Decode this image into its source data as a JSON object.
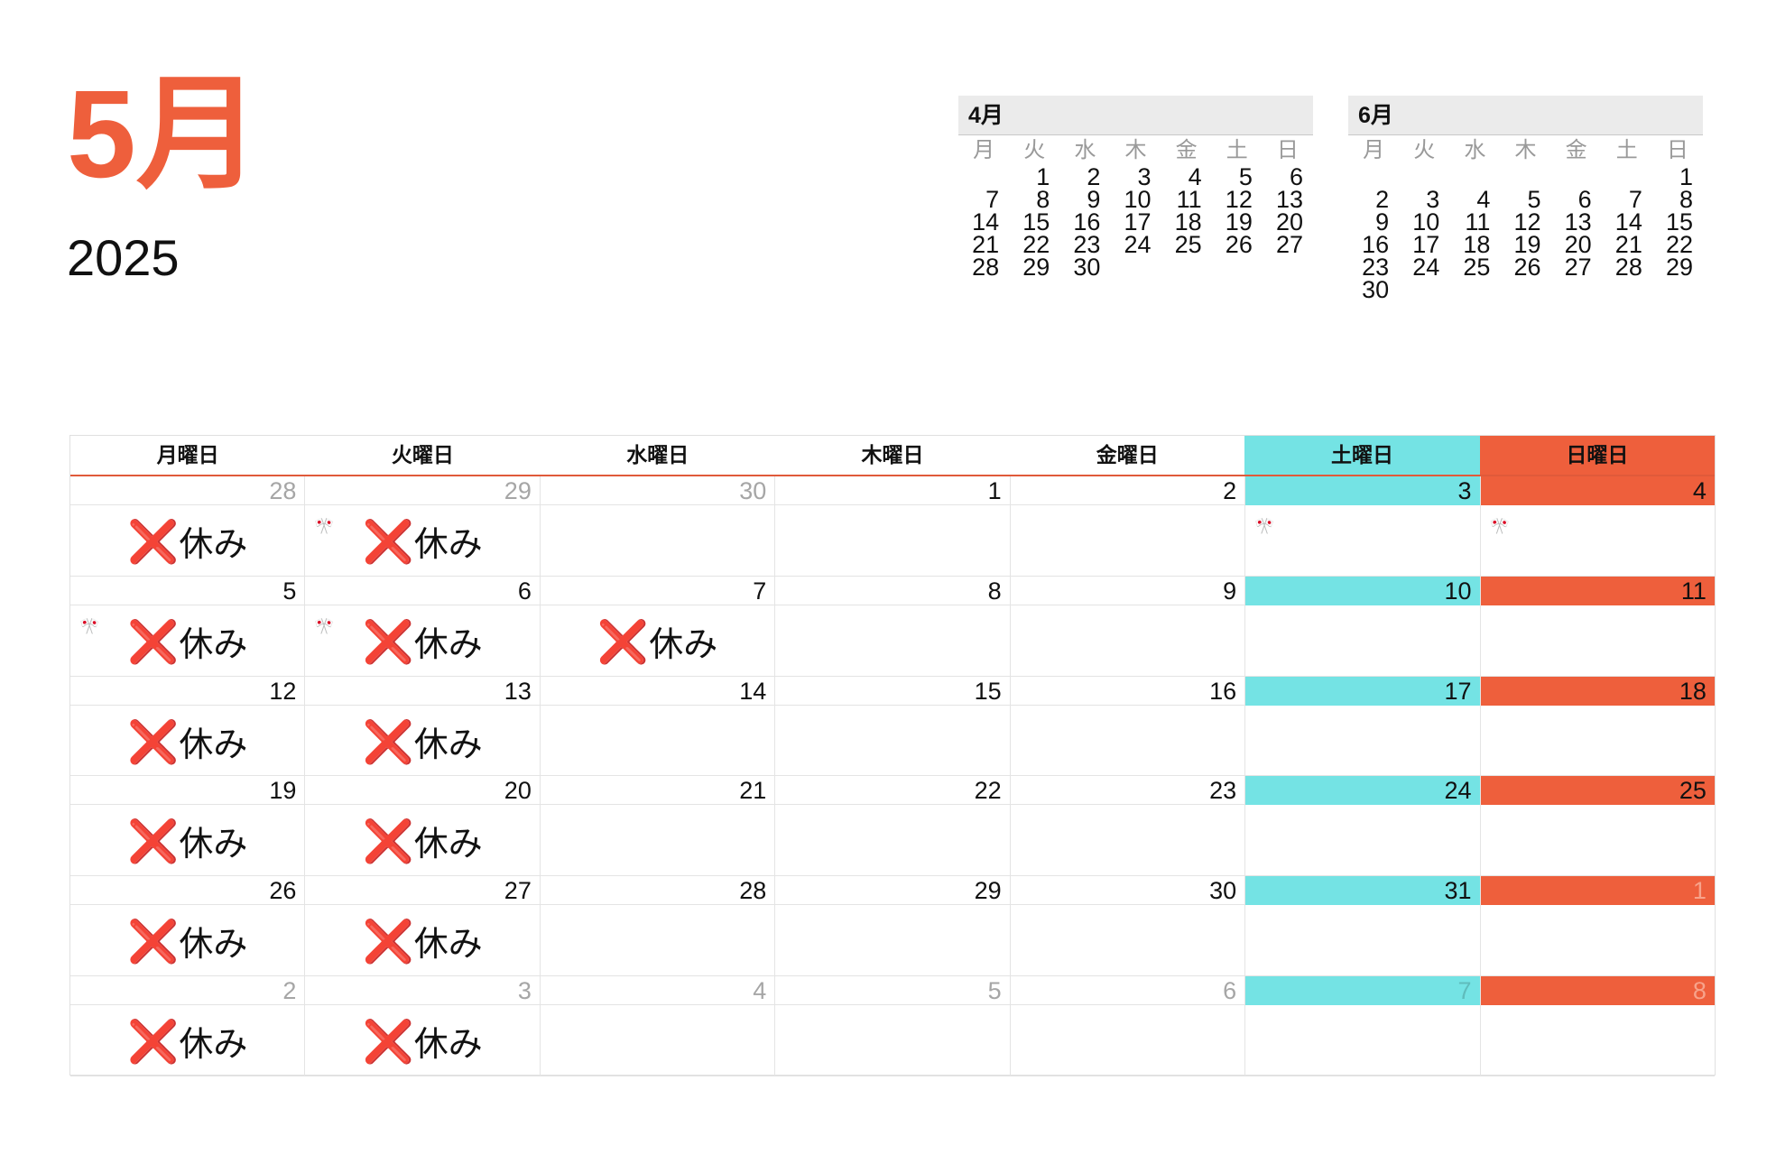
{
  "header": {
    "month": "5月",
    "year": "2025"
  },
  "mini_calendars": [
    {
      "title": "4月",
      "weekdays": [
        "月",
        "火",
        "水",
        "木",
        "金",
        "土",
        "日"
      ],
      "weeks": [
        [
          "",
          "1",
          "2",
          "3",
          "4",
          "5",
          "6"
        ],
        [
          "7",
          "8",
          "9",
          "10",
          "11",
          "12",
          "13"
        ],
        [
          "14",
          "15",
          "16",
          "17",
          "18",
          "19",
          "20"
        ],
        [
          "21",
          "22",
          "23",
          "24",
          "25",
          "26",
          "27"
        ],
        [
          "28",
          "29",
          "30",
          "",
          "",
          "",
          ""
        ]
      ]
    },
    {
      "title": "6月",
      "weekdays": [
        "月",
        "火",
        "水",
        "木",
        "金",
        "土",
        "日"
      ],
      "weeks": [
        [
          "",
          "",
          "",
          "",
          "",
          "",
          "1"
        ],
        [
          "2",
          "3",
          "4",
          "5",
          "6",
          "7",
          "8"
        ],
        [
          "9",
          "10",
          "11",
          "12",
          "13",
          "14",
          "15"
        ],
        [
          "16",
          "17",
          "18",
          "19",
          "20",
          "21",
          "22"
        ],
        [
          "23",
          "24",
          "25",
          "26",
          "27",
          "28",
          "29"
        ],
        [
          "30",
          "",
          "",
          "",
          "",
          "",
          ""
        ]
      ]
    }
  ],
  "grid": {
    "weekdays": [
      "月曜日",
      "火曜日",
      "水曜日",
      "木曜日",
      "金曜日",
      "土曜日",
      "日曜日"
    ],
    "event_mark": "❌",
    "event_text": "休み",
    "holiday_icon": "🎌",
    "weeks": [
      [
        {
          "day": "28",
          "out": true,
          "event": true
        },
        {
          "day": "29",
          "out": true,
          "event": true,
          "holiday": true
        },
        {
          "day": "30",
          "out": true
        },
        {
          "day": "1"
        },
        {
          "day": "2"
        },
        {
          "day": "3",
          "holiday": true
        },
        {
          "day": "4",
          "holiday": true
        }
      ],
      [
        {
          "day": "5",
          "event": true,
          "holiday": true
        },
        {
          "day": "6",
          "event": true,
          "holiday": true
        },
        {
          "day": "7",
          "event": true
        },
        {
          "day": "8"
        },
        {
          "day": "9"
        },
        {
          "day": "10"
        },
        {
          "day": "11"
        }
      ],
      [
        {
          "day": "12",
          "event": true
        },
        {
          "day": "13",
          "event": true
        },
        {
          "day": "14"
        },
        {
          "day": "15"
        },
        {
          "day": "16"
        },
        {
          "day": "17"
        },
        {
          "day": "18"
        }
      ],
      [
        {
          "day": "19",
          "event": true
        },
        {
          "day": "20",
          "event": true
        },
        {
          "day": "21"
        },
        {
          "day": "22"
        },
        {
          "day": "23"
        },
        {
          "day": "24"
        },
        {
          "day": "25"
        }
      ],
      [
        {
          "day": "26",
          "event": true
        },
        {
          "day": "27",
          "event": true
        },
        {
          "day": "28"
        },
        {
          "day": "29"
        },
        {
          "day": "30"
        },
        {
          "day": "31"
        },
        {
          "day": "1",
          "out": true
        }
      ],
      [
        {
          "day": "2",
          "out": true,
          "event": true
        },
        {
          "day": "3",
          "out": true,
          "event": true
        },
        {
          "day": "4",
          "out": true
        },
        {
          "day": "5",
          "out": true
        },
        {
          "day": "6",
          "out": true
        },
        {
          "day": "7",
          "out": true
        },
        {
          "day": "8",
          "out": true
        }
      ]
    ]
  },
  "colors": {
    "accent": "#ee5f3c",
    "saturday": "#74e3e4",
    "sunday": "#ee5f3c",
    "out_of_month": "#a6a6a6"
  }
}
